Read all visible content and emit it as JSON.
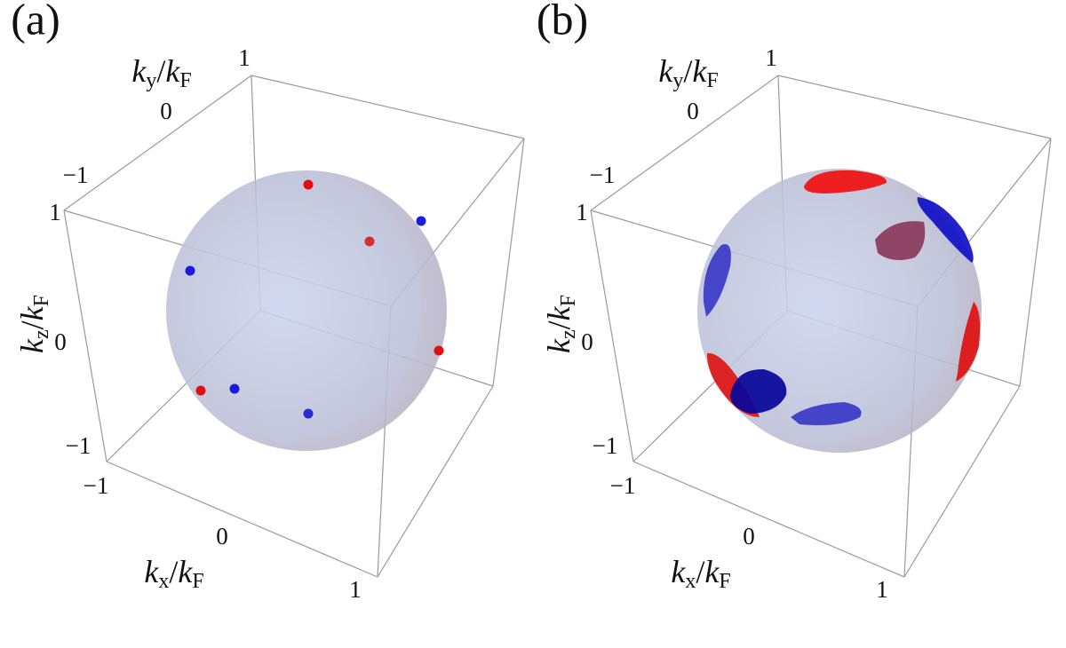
{
  "panels": [
    {
      "label": "(a)",
      "y_axis": {
        "num": "k",
        "num_sub": "y",
        "sep": "/",
        "den": "k",
        "den_sub": "F"
      },
      "z_axis": {
        "num": "k",
        "num_sub": "z",
        "sep": "/",
        "den": "k",
        "den_sub": "F"
      },
      "x_axis": {
        "num": "k",
        "num_sub": "x",
        "sep": "/",
        "den": "k",
        "den_sub": "F"
      },
      "y_ticks": [
        "1",
        "0",
        "−1"
      ],
      "z_ticks": [
        "1",
        "0",
        "−1"
      ],
      "x_ticks": [
        "−1",
        "0",
        "1"
      ]
    },
    {
      "label": "(b)",
      "y_axis": {
        "num": "k",
        "num_sub": "y",
        "sep": "/",
        "den": "k",
        "den_sub": "F"
      },
      "z_axis": {
        "num": "k",
        "num_sub": "z",
        "sep": "/",
        "den": "k",
        "den_sub": "F"
      },
      "x_axis": {
        "num": "k",
        "num_sub": "x",
        "sep": "/",
        "den": "k",
        "den_sub": "F"
      },
      "y_ticks": [
        "1",
        "0",
        "−1"
      ],
      "z_ticks": [
        "1",
        "0",
        "−1"
      ],
      "x_ticks": [
        "−1",
        "0",
        "1"
      ]
    }
  ]
}
